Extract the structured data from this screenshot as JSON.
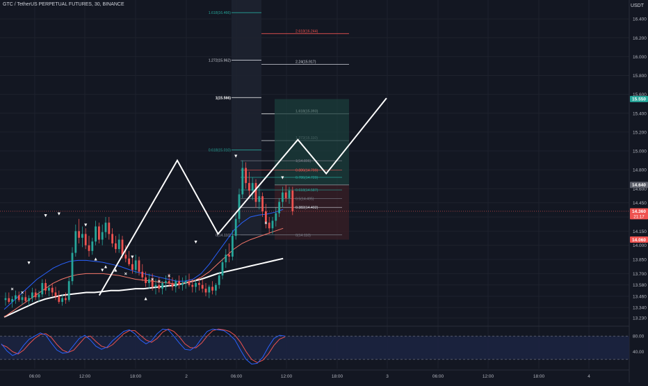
{
  "header": {
    "symbol_line": "GTC / TetherUS PERPETUAL FUTURES, 30, BINANCE",
    "currency": "USDT"
  },
  "colors": {
    "background": "#131722",
    "grid": "#1e222d",
    "text": "#b2b5be",
    "candle_up": "#26a69a",
    "candle_down": "#ef5350",
    "ma_fast": "#2962ff",
    "ma_mid": "#f7786b",
    "ma_slow": "#ffffff",
    "fib_top": "#26a69a",
    "fib_ext": "#ef5350",
    "target_zone": "#1b3e3b",
    "stop_zone": "#3a1f25",
    "stoch_k": "#2962ff",
    "stoch_d": "#ef5350",
    "stoch_band": "#1c2440"
  },
  "chart_data": {
    "type": "candlestick",
    "y_axis": {
      "range": [
        13.15,
        16.6
      ],
      "ticks": [
        "16.400",
        "16.200",
        "16.000",
        "15.800",
        "15.600",
        "15.400",
        "15.200",
        "15.000",
        "14.800",
        "14.600",
        "14.450",
        "14.300",
        "14.150",
        "14.000",
        "13.850",
        "13.700",
        "13.580",
        "13.460",
        "13.340",
        "13.230"
      ]
    },
    "x_axis": {
      "ticks": [
        "06:00",
        "12:00",
        "18:00",
        "2",
        "06:00",
        "12:00",
        "18:00",
        "3",
        "06:00",
        "12:00",
        "18:00",
        "4"
      ]
    },
    "price_labels": [
      {
        "text": "15.550",
        "value": 15.55,
        "color": "#26a69a"
      },
      {
        "text": "14.640",
        "value": 14.64,
        "color": "#5d606b"
      },
      {
        "text": "14.360",
        "value": 14.36,
        "color": "#ef5350",
        "sub": "21:17"
      },
      {
        "text": "14.060",
        "value": 14.06,
        "color": "#ef5350"
      }
    ],
    "fib_large": [
      {
        "label": "1.618(16.466)",
        "value": 16.466,
        "color": "#26a69a",
        "bold": false
      },
      {
        "label": "1.272(15.962)",
        "value": 15.962,
        "color": "#d1d4dc",
        "bold": false
      },
      {
        "label": "1(15.566)",
        "value": 15.566,
        "color": "#ffffff",
        "bold": true
      },
      {
        "label": "0.618(15.010)",
        "value": 15.01,
        "color": "#26a69a",
        "bold": false
      },
      {
        "label": "0(14.110)",
        "value": 14.11,
        "color": "#787b86",
        "bold": false
      }
    ],
    "fib_extension": [
      {
        "label": "2.618(16.244)",
        "value": 16.244,
        "color": "#ef5350",
        "bold": false
      },
      {
        "label": "2.24(15.917)",
        "value": 15.917,
        "color": "#d1d4dc",
        "bold": false
      },
      {
        "label": "1.618(15.393)",
        "value": 15.393,
        "color": "#ffffff",
        "bold": true
      },
      {
        "label": "1.272(15.110)",
        "value": 15.11,
        "color": "#d1d4dc",
        "bold": false
      }
    ],
    "fib_retracement": [
      {
        "label": "1(14.896)",
        "value": 14.896,
        "color": "#787b86"
      },
      {
        "label": "0.886(14.799)",
        "value": 14.799,
        "color": "#ef5350"
      },
      {
        "label": "0.786(14.720)",
        "value": 14.72,
        "color": "#26a69a"
      },
      {
        "label": "0.618(14.587)",
        "value": 14.587,
        "color": "#26a69a"
      },
      {
        "label": "0.5(14.495)",
        "value": 14.495,
        "color": "#787b86"
      },
      {
        "label": "0.382(14.402)",
        "value": 14.402,
        "color": "#d1d4dc"
      },
      {
        "label": "0(14.110)",
        "value": 14.11,
        "color": "#787b86"
      }
    ],
    "position_tool": {
      "target": 15.55,
      "entry": 14.64,
      "stop": 14.06
    },
    "current_price": 14.36,
    "pattern_path": [
      {
        "x": 28.0,
        "y": 13.47
      },
      {
        "x": 50.0,
        "y": 14.9
      },
      {
        "x": 61.5,
        "y": 14.12
      },
      {
        "x": 84.0,
        "y": 15.12
      },
      {
        "x": 92.0,
        "y": 14.76
      },
      {
        "x": 109.0,
        "y": 15.56
      }
    ],
    "candles": [
      {
        "o": 13.42,
        "h": 13.5,
        "l": 13.36,
        "c": 13.44
      },
      {
        "o": 13.44,
        "h": 13.5,
        "l": 13.38,
        "c": 13.4
      },
      {
        "o": 13.4,
        "h": 13.46,
        "l": 13.34,
        "c": 13.43
      },
      {
        "o": 13.43,
        "h": 13.52,
        "l": 13.38,
        "c": 13.47
      },
      {
        "o": 13.47,
        "h": 13.51,
        "l": 13.4,
        "c": 13.42
      },
      {
        "o": 13.42,
        "h": 13.48,
        "l": 13.37,
        "c": 13.45
      },
      {
        "o": 13.45,
        "h": 13.52,
        "l": 13.39,
        "c": 13.41
      },
      {
        "o": 13.41,
        "h": 13.47,
        "l": 13.36,
        "c": 13.44
      },
      {
        "o": 13.44,
        "h": 13.55,
        "l": 13.4,
        "c": 13.5
      },
      {
        "o": 13.5,
        "h": 13.54,
        "l": 13.42,
        "c": 13.45
      },
      {
        "o": 13.45,
        "h": 13.52,
        "l": 13.4,
        "c": 13.48
      },
      {
        "o": 13.48,
        "h": 13.64,
        "l": 13.45,
        "c": 13.6
      },
      {
        "o": 13.6,
        "h": 13.64,
        "l": 13.48,
        "c": 13.52
      },
      {
        "o": 13.52,
        "h": 13.58,
        "l": 13.46,
        "c": 13.55
      },
      {
        "o": 13.55,
        "h": 13.6,
        "l": 13.46,
        "c": 13.5
      },
      {
        "o": 13.5,
        "h": 13.56,
        "l": 13.42,
        "c": 13.46
      },
      {
        "o": 13.46,
        "h": 13.52,
        "l": 13.38,
        "c": 13.4
      },
      {
        "o": 13.4,
        "h": 13.48,
        "l": 13.36,
        "c": 13.44
      },
      {
        "o": 13.44,
        "h": 13.5,
        "l": 13.38,
        "c": 13.42
      },
      {
        "o": 13.42,
        "h": 13.66,
        "l": 13.4,
        "c": 13.62
      },
      {
        "o": 13.62,
        "h": 13.98,
        "l": 13.58,
        "c": 13.92
      },
      {
        "o": 13.92,
        "h": 14.22,
        "l": 13.88,
        "c": 14.15
      },
      {
        "o": 14.15,
        "h": 14.28,
        "l": 14.02,
        "c": 14.08
      },
      {
        "o": 14.08,
        "h": 14.2,
        "l": 13.98,
        "c": 14.12
      },
      {
        "o": 14.12,
        "h": 14.18,
        "l": 13.96,
        "c": 14.0
      },
      {
        "o": 14.0,
        "h": 14.1,
        "l": 13.88,
        "c": 13.94
      },
      {
        "o": 13.94,
        "h": 14.08,
        "l": 13.9,
        "c": 14.04
      },
      {
        "o": 14.04,
        "h": 14.26,
        "l": 14.0,
        "c": 14.2
      },
      {
        "o": 14.2,
        "h": 14.24,
        "l": 14.02,
        "c": 14.06
      },
      {
        "o": 14.06,
        "h": 14.22,
        "l": 14.0,
        "c": 14.14
      },
      {
        "o": 14.14,
        "h": 14.3,
        "l": 14.08,
        "c": 14.24
      },
      {
        "o": 14.24,
        "h": 14.3,
        "l": 14.06,
        "c": 14.12
      },
      {
        "o": 14.12,
        "h": 14.18,
        "l": 13.98,
        "c": 14.02
      },
      {
        "o": 14.02,
        "h": 14.1,
        "l": 13.92,
        "c": 13.96
      },
      {
        "o": 13.96,
        "h": 14.12,
        "l": 13.92,
        "c": 14.06
      },
      {
        "o": 14.06,
        "h": 14.1,
        "l": 13.86,
        "c": 13.9
      },
      {
        "o": 13.9,
        "h": 14.0,
        "l": 13.82,
        "c": 13.86
      },
      {
        "o": 13.86,
        "h": 13.94,
        "l": 13.78,
        "c": 13.8
      },
      {
        "o": 13.8,
        "h": 13.86,
        "l": 13.7,
        "c": 13.74
      },
      {
        "o": 13.74,
        "h": 13.9,
        "l": 13.7,
        "c": 13.84
      },
      {
        "o": 13.84,
        "h": 13.88,
        "l": 13.68,
        "c": 13.72
      },
      {
        "o": 13.72,
        "h": 13.8,
        "l": 13.62,
        "c": 13.66
      },
      {
        "o": 13.66,
        "h": 13.72,
        "l": 13.56,
        "c": 13.6
      },
      {
        "o": 13.6,
        "h": 13.7,
        "l": 13.54,
        "c": 13.64
      },
      {
        "o": 13.64,
        "h": 13.7,
        "l": 13.52,
        "c": 13.56
      },
      {
        "o": 13.56,
        "h": 13.64,
        "l": 13.48,
        "c": 13.58
      },
      {
        "o": 13.58,
        "h": 13.66,
        "l": 13.5,
        "c": 13.54
      },
      {
        "o": 13.54,
        "h": 13.62,
        "l": 13.48,
        "c": 13.6
      },
      {
        "o": 13.6,
        "h": 13.68,
        "l": 13.52,
        "c": 13.62
      },
      {
        "o": 13.62,
        "h": 13.7,
        "l": 13.56,
        "c": 13.6
      },
      {
        "o": 13.6,
        "h": 13.66,
        "l": 13.52,
        "c": 13.56
      },
      {
        "o": 13.56,
        "h": 13.64,
        "l": 13.5,
        "c": 13.62
      },
      {
        "o": 13.62,
        "h": 13.68,
        "l": 13.54,
        "c": 13.58
      },
      {
        "o": 13.58,
        "h": 13.66,
        "l": 13.52,
        "c": 13.6
      },
      {
        "o": 13.6,
        "h": 13.68,
        "l": 13.54,
        "c": 13.62
      },
      {
        "o": 13.62,
        "h": 13.7,
        "l": 13.56,
        "c": 13.58
      },
      {
        "o": 13.58,
        "h": 13.64,
        "l": 13.5,
        "c": 13.56
      },
      {
        "o": 13.56,
        "h": 13.64,
        "l": 13.5,
        "c": 13.6
      },
      {
        "o": 13.6,
        "h": 13.66,
        "l": 13.52,
        "c": 13.58
      },
      {
        "o": 13.58,
        "h": 13.64,
        "l": 13.5,
        "c": 13.54
      },
      {
        "o": 13.54,
        "h": 13.6,
        "l": 13.46,
        "c": 13.5
      },
      {
        "o": 13.5,
        "h": 13.58,
        "l": 13.44,
        "c": 13.56
      },
      {
        "o": 13.56,
        "h": 13.62,
        "l": 13.48,
        "c": 13.52
      },
      {
        "o": 13.52,
        "h": 13.6,
        "l": 13.47,
        "c": 13.58
      },
      {
        "o": 13.58,
        "h": 13.72,
        "l": 13.54,
        "c": 13.68
      },
      {
        "o": 13.68,
        "h": 13.86,
        "l": 13.64,
        "c": 13.82
      },
      {
        "o": 13.82,
        "h": 13.96,
        "l": 13.76,
        "c": 13.9
      },
      {
        "o": 13.9,
        "h": 14.02,
        "l": 13.82,
        "c": 13.88
      },
      {
        "o": 13.88,
        "h": 14.16,
        "l": 13.84,
        "c": 14.1
      },
      {
        "o": 14.1,
        "h": 14.34,
        "l": 14.06,
        "c": 14.28
      },
      {
        "o": 14.28,
        "h": 14.6,
        "l": 14.24,
        "c": 14.54
      },
      {
        "o": 14.54,
        "h": 14.9,
        "l": 14.5,
        "c": 14.82
      },
      {
        "o": 14.82,
        "h": 14.88,
        "l": 14.6,
        "c": 14.66
      },
      {
        "o": 14.66,
        "h": 14.78,
        "l": 14.52,
        "c": 14.58
      },
      {
        "o": 14.58,
        "h": 14.72,
        "l": 14.48,
        "c": 14.66
      },
      {
        "o": 14.66,
        "h": 14.7,
        "l": 14.4,
        "c": 14.46
      },
      {
        "o": 14.46,
        "h": 14.62,
        "l": 14.38,
        "c": 14.52
      },
      {
        "o": 14.52,
        "h": 14.56,
        "l": 14.3,
        "c": 14.36
      },
      {
        "o": 14.36,
        "h": 14.44,
        "l": 14.18,
        "c": 14.24
      },
      {
        "o": 14.24,
        "h": 14.3,
        "l": 14.12,
        "c": 14.18
      },
      {
        "o": 14.18,
        "h": 14.3,
        "l": 14.12,
        "c": 14.26
      },
      {
        "o": 14.26,
        "h": 14.4,
        "l": 14.2,
        "c": 14.34
      },
      {
        "o": 14.34,
        "h": 14.5,
        "l": 14.3,
        "c": 14.46
      },
      {
        "o": 14.46,
        "h": 14.62,
        "l": 14.4,
        "c": 14.56
      },
      {
        "o": 14.56,
        "h": 14.64,
        "l": 14.46,
        "c": 14.5
      },
      {
        "o": 14.5,
        "h": 14.62,
        "l": 14.44,
        "c": 14.58
      },
      {
        "o": 14.58,
        "h": 14.62,
        "l": 14.32,
        "c": 14.36
      }
    ],
    "markers": [
      {
        "i": 2,
        "v": 13.52,
        "s": "×",
        "color": "#ffffff"
      },
      {
        "i": 5,
        "v": 13.48,
        "s": "×",
        "color": "#ffffff"
      },
      {
        "i": 7,
        "v": 13.8,
        "s": "▼",
        "color": "#ffffff"
      },
      {
        "i": 12,
        "v": 14.3,
        "s": "▼",
        "color": "#ffffff"
      },
      {
        "i": 16,
        "v": 14.32,
        "s": "▼",
        "color": "#ffffff"
      },
      {
        "i": 24,
        "v": 14.2,
        "s": "▼",
        "color": "#ffffff"
      },
      {
        "i": 27,
        "v": 13.84,
        "s": "▲",
        "color": "#ffffff"
      },
      {
        "i": 29,
        "v": 13.72,
        "s": "▼",
        "color": "#ffffff"
      },
      {
        "i": 30,
        "v": 13.76,
        "s": "▲",
        "color": "#ffffff"
      },
      {
        "i": 33,
        "v": 13.72,
        "s": "▲",
        "color": "#ffffff"
      },
      {
        "i": 36,
        "v": 13.68,
        "s": "×",
        "color": "#ffffff"
      },
      {
        "i": 38,
        "v": 13.86,
        "s": "▼",
        "color": "#ffffff"
      },
      {
        "i": 42,
        "v": 13.42,
        "s": "▲",
        "color": "#ffffff"
      },
      {
        "i": 44,
        "v": 13.62,
        "s": "×",
        "color": "#ffffff"
      },
      {
        "i": 46,
        "v": 13.6,
        "s": "×",
        "color": "#ffffff"
      },
      {
        "i": 49,
        "v": 13.66,
        "s": "×",
        "color": "#ffffff"
      },
      {
        "i": 57,
        "v": 14.02,
        "s": "▼",
        "color": "#ffffff"
      },
      {
        "i": 69,
        "v": 14.93,
        "s": "▼",
        "color": "#ffffff"
      },
      {
        "i": 78,
        "v": 14.22,
        "s": "×",
        "color": "#ffffff"
      },
      {
        "i": 83,
        "v": 14.7,
        "s": "▼",
        "color": "#ffffff"
      }
    ],
    "ma_fast": [
      13.32,
      13.4,
      13.48,
      13.56,
      13.64,
      13.7,
      13.76,
      13.8,
      13.83,
      13.84,
      13.84,
      13.83,
      13.82,
      13.8,
      13.78,
      13.75,
      13.72,
      13.7,
      13.68,
      13.66,
      13.64,
      13.62,
      13.62,
      13.64,
      13.7,
      13.8,
      13.92,
      14.04,
      14.16,
      14.24,
      14.3,
      14.32,
      14.33,
      14.35,
      14.38
    ],
    "ma_mid": [
      13.24,
      13.3,
      13.36,
      13.42,
      13.48,
      13.54,
      13.6,
      13.64,
      13.67,
      13.69,
      13.7,
      13.7,
      13.7,
      13.69,
      13.68,
      13.66,
      13.64,
      13.63,
      13.62,
      13.61,
      13.6,
      13.59,
      13.6,
      13.62,
      13.66,
      13.72,
      13.8,
      13.88,
      13.96,
      14.02,
      14.06,
      14.09,
      14.12,
      14.15,
      14.18
    ],
    "ma_slow": [
      13.24,
      13.28,
      13.32,
      13.36,
      13.4,
      13.43,
      13.45,
      13.47,
      13.48,
      13.49,
      13.5,
      13.5,
      13.51,
      13.52,
      13.52,
      13.53,
      13.54,
      13.54,
      13.55,
      13.56,
      13.57,
      13.58,
      13.6,
      13.62,
      13.64,
      13.67,
      13.7,
      13.72,
      13.74,
      13.76,
      13.78,
      13.8,
      13.82,
      13.84,
      13.86
    ],
    "stoch": {
      "levels": [
        "80.00",
        "40.00"
      ],
      "k": [
        60,
        42,
        30,
        36,
        56,
        72,
        80,
        88,
        82,
        62,
        44,
        36,
        38,
        56,
        74,
        82,
        70,
        54,
        46,
        52,
        68,
        80,
        92,
        96,
        86,
        70,
        60,
        68,
        86,
        98,
        96,
        80,
        62,
        46,
        44,
        54,
        74,
        92,
        98,
        96,
        94,
        84,
        70,
        44,
        20,
        8,
        10,
        26,
        52,
        74,
        82,
        80
      ],
      "d": [
        58,
        52,
        40,
        34,
        44,
        60,
        74,
        84,
        86,
        76,
        58,
        44,
        38,
        44,
        60,
        76,
        80,
        66,
        54,
        50,
        58,
        72,
        86,
        94,
        94,
        82,
        70,
        64,
        74,
        90,
        98,
        92,
        78,
        60,
        50,
        50,
        62,
        80,
        94,
        98,
        96,
        92,
        82,
        64,
        40,
        20,
        12,
        18,
        34,
        56,
        72,
        78
      ]
    }
  }
}
